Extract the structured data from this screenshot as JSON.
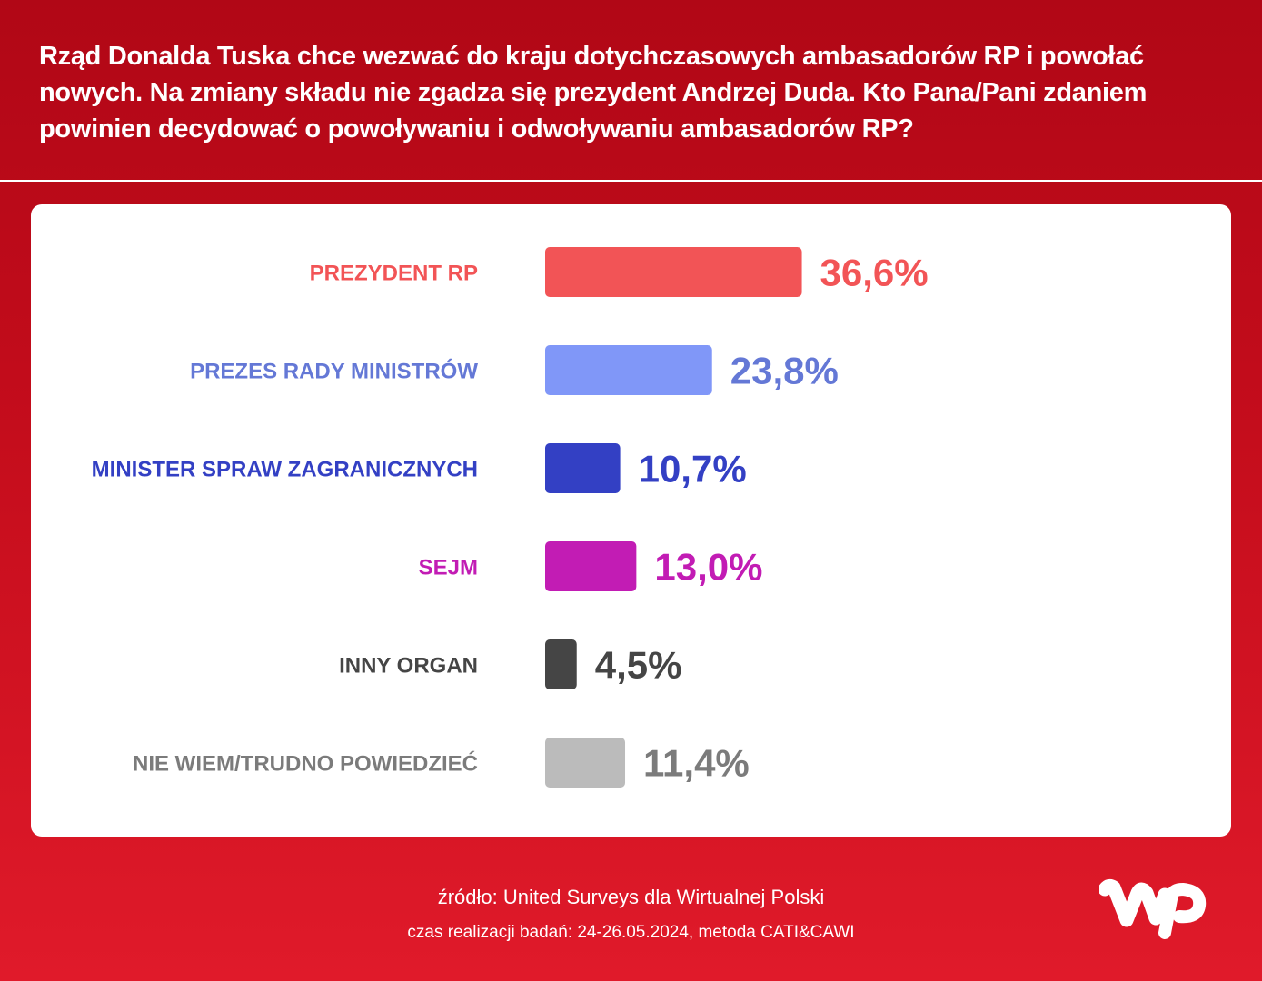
{
  "question": "Rząd Donalda Tuska chce wezwać do kraju dotychczasowych ambasadorów RP i powołać nowych. Na zmiany składu nie zgadza się prezydent Andrzej Duda. Kto Pana/Pani zdaniem powinien decydować o powoływaniu i odwoływaniu ambasadorów RP?",
  "footer": {
    "source": "źródło: United Surveys dla Wirtualnej Polski",
    "dates": "czas realizacji badań: 24-26.05.2024, metoda CATI&CAWI"
  },
  "logo": {
    "icon": "wp-logo-icon"
  },
  "colors": {
    "background": "#c50d1c",
    "card": "#ffffff"
  },
  "chart_data": {
    "type": "bar",
    "orientation": "horizontal",
    "categories": [
      "PREZYDENT RP",
      "PREZES RADY MINISTRÓW",
      "MINISTER SPRAW ZAGRANICZNYCH",
      "SEJM",
      "INNY ORGAN",
      "NIE WIEM/TRUDNO POWIEDZIEĆ"
    ],
    "values": [
      36.6,
      23.8,
      10.7,
      13.0,
      4.5,
      11.4
    ],
    "value_labels": [
      "36,6%",
      "23,8%",
      "10,7%",
      "13,0%",
      "4,5%",
      "11,4%"
    ],
    "colors": [
      "#f25456",
      "#8097f8",
      "#3340c4",
      "#c21cb4",
      "#454545",
      "#bbbbbb"
    ],
    "label_colors": [
      "#f25456",
      "#6478d6",
      "#3340c4",
      "#c21cb4",
      "#454545",
      "#7b7b7b"
    ],
    "xlim": [
      0,
      100
    ],
    "grid": false,
    "legend": "none"
  }
}
